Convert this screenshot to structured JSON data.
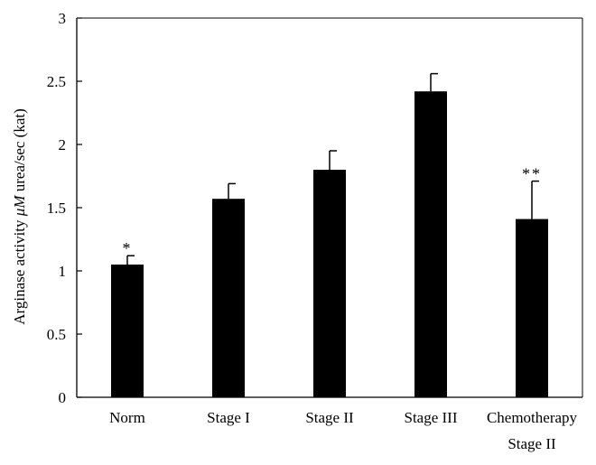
{
  "chart_data": {
    "type": "bar",
    "title": "",
    "xlabel": "",
    "ylabel_main": "Arginase activity ",
    "ylabel_unit_symbol": "μM",
    "ylabel_rest": " urea/sec (kat)",
    "ylim": [
      0,
      3
    ],
    "yticks": [
      {
        "value": 0,
        "label": "0"
      },
      {
        "value": 0.5,
        "label": "0.5"
      },
      {
        "value": 1,
        "label": "1"
      },
      {
        "value": 1.5,
        "label": "1.5"
      },
      {
        "value": 2,
        "label": "2"
      },
      {
        "value": 2.5,
        "label": "2.5"
      },
      {
        "value": 3,
        "label": "3"
      }
    ],
    "categories": [
      [
        "Norm"
      ],
      [
        "Stage I"
      ],
      [
        "Stage II"
      ],
      [
        "Stage III"
      ],
      [
        "Chemotherapy",
        "Stage II"
      ]
    ],
    "values": [
      1.05,
      1.57,
      1.8,
      2.42,
      1.41
    ],
    "errors": [
      0.07,
      0.12,
      0.15,
      0.14,
      0.3
    ],
    "annotations": [
      "*",
      "",
      "",
      "",
      "**"
    ],
    "bar_color": "#000000",
    "grid": false
  }
}
